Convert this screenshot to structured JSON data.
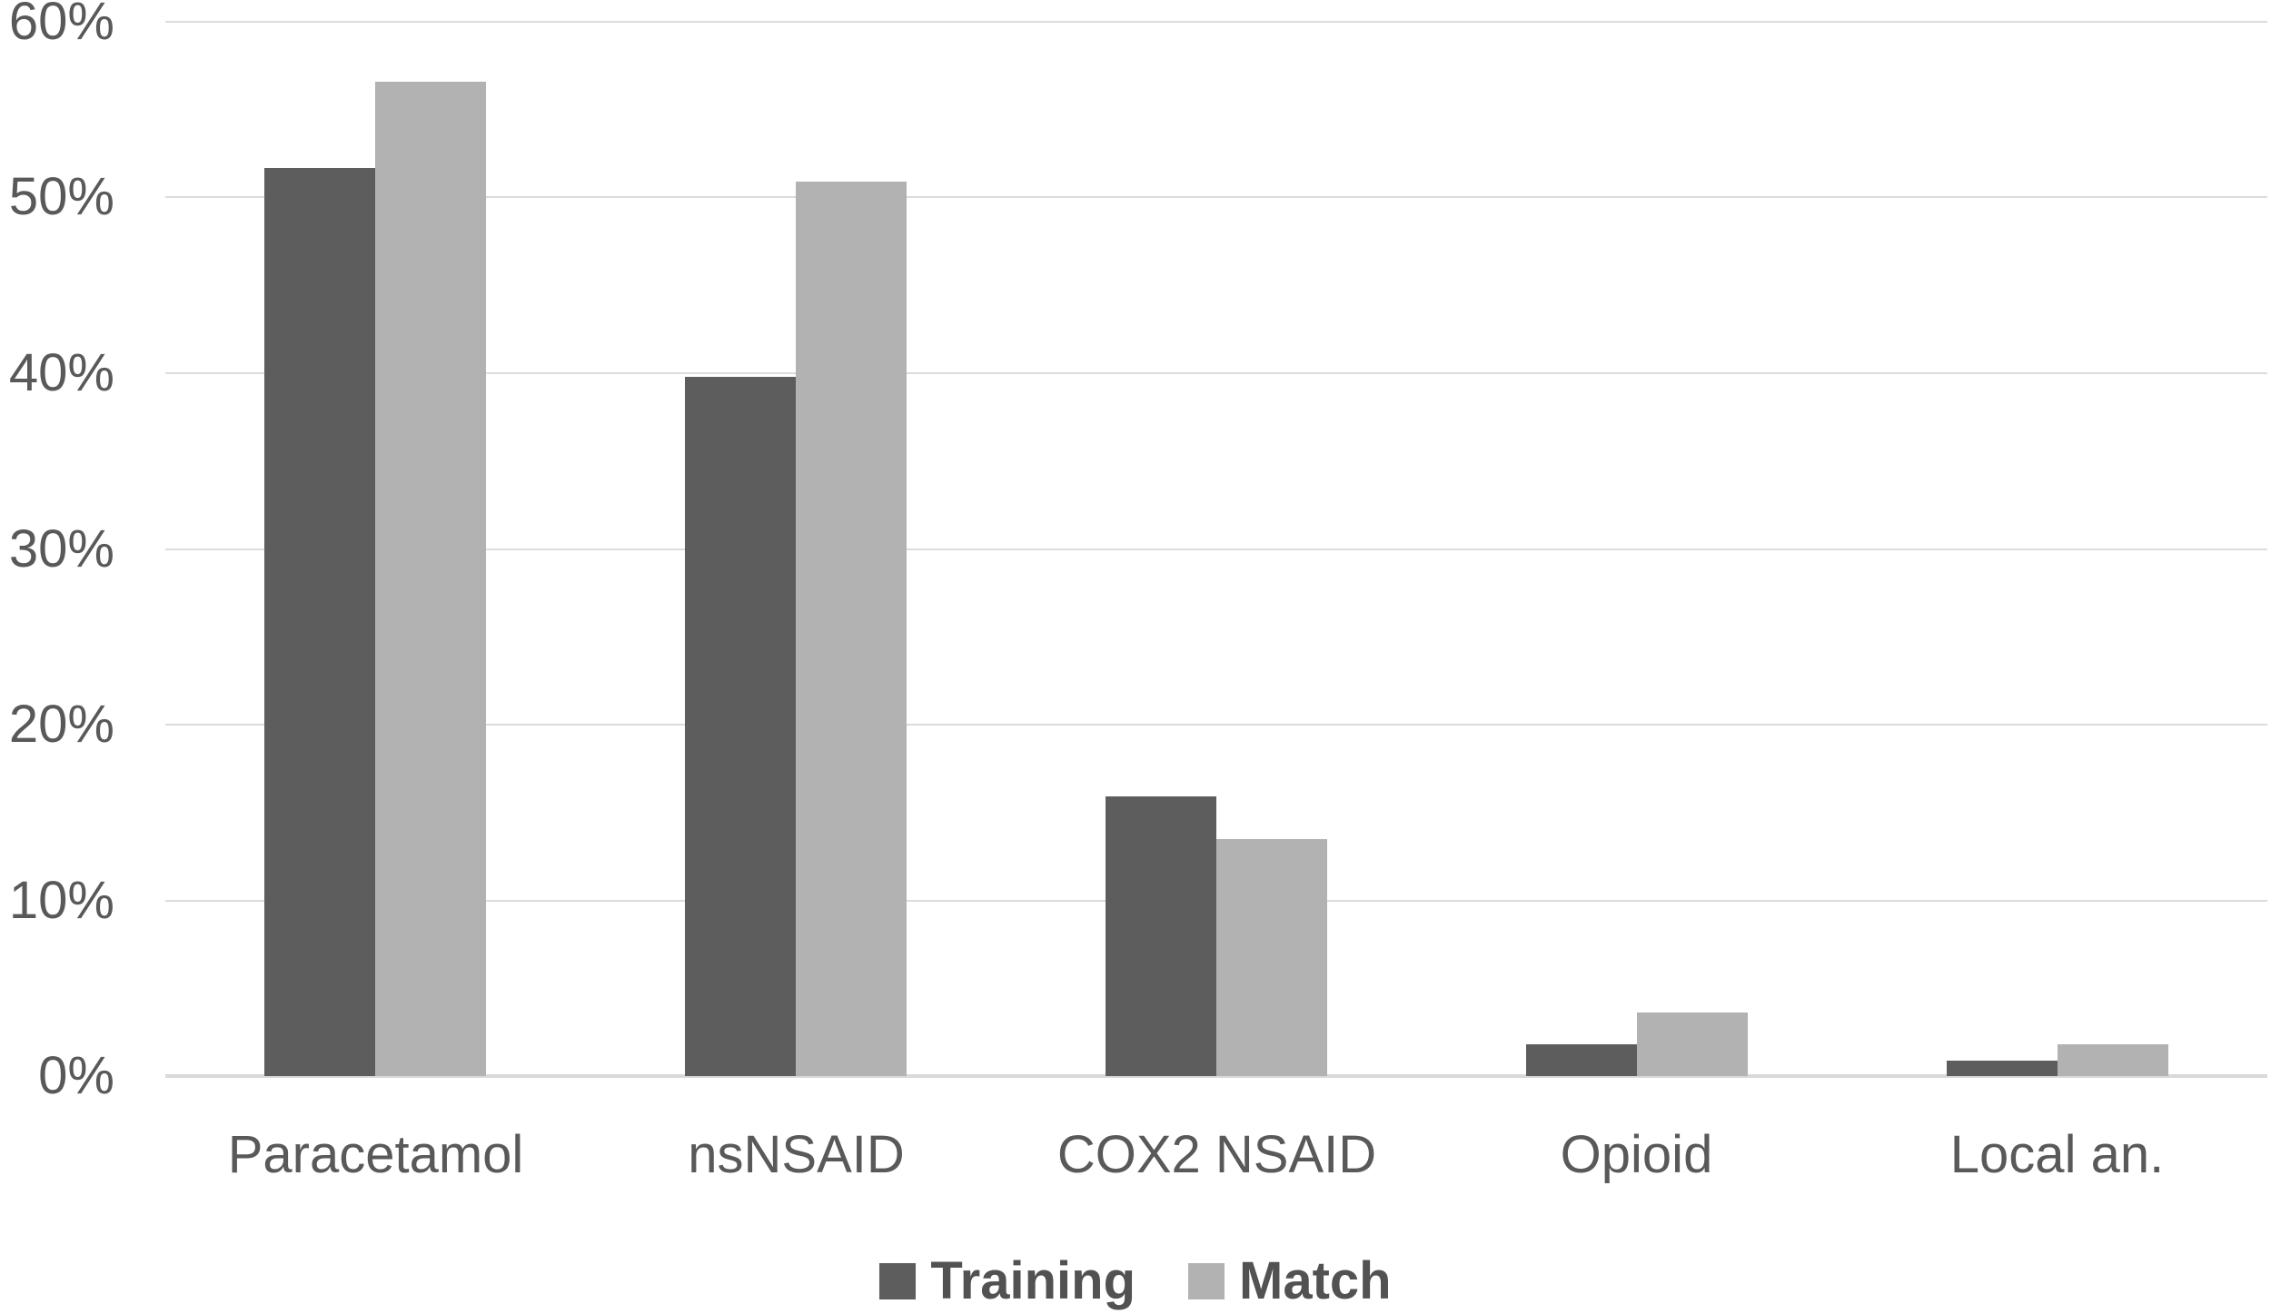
{
  "chart_data": {
    "type": "bar",
    "title": "",
    "categories": [
      "Paracetamol",
      "nsNSAID",
      "COX2 NSAID",
      "Opioid",
      "Local an."
    ],
    "series": [
      {
        "name": "Training",
        "color": "#5d5d5d",
        "values": [
          51.7,
          39.8,
          15.9,
          1.8,
          0.9
        ]
      },
      {
        "name": "Match",
        "color": "#b2b2b2",
        "values": [
          56.6,
          50.9,
          13.5,
          3.6,
          1.8
        ]
      }
    ],
    "y_axis": {
      "min": 0,
      "max": 60,
      "step": 10,
      "unit": "%",
      "tick_labels": [
        "0%",
        "10%",
        "20%",
        "30%",
        "40%",
        "50%",
        "60%"
      ]
    },
    "x_axis": {
      "label": ""
    },
    "grid": "horizontal",
    "legend_position": "bottom",
    "colors": {
      "gridline": "#dcdcdc",
      "axis_line": "#d9d9d9",
      "tick_text": "#595959",
      "category_text": "#595959",
      "legend_text": "#525252",
      "background": "#ffffff"
    }
  },
  "legend": {
    "items": [
      {
        "label": "Training"
      },
      {
        "label": "Match"
      }
    ]
  }
}
